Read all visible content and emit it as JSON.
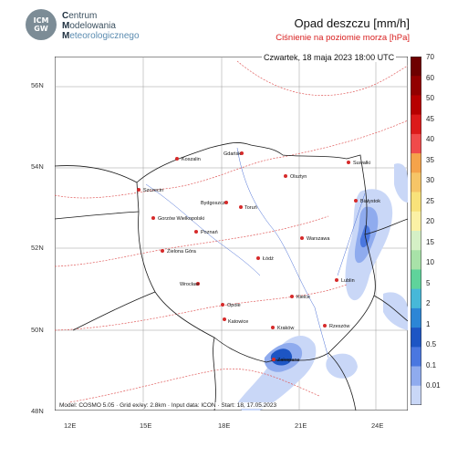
{
  "logo": {
    "mark": "ICM GW",
    "lines": [
      "Centrum",
      "Modelowania",
      "Meteorologicznego"
    ]
  },
  "title": "Opad deszczu [mm/h]",
  "subtitle": "Ciśnienie na poziomie morza [hPa]",
  "date_line": "Czwartek, 18 maja 2023 18:00 UTC",
  "footer": "Model: COSMO 5.05 · Grid ex/ey: 2.8km · Input data: ICON · Start: 18, 17.05.2023",
  "lat_labels": [
    "56N",
    "54N",
    "52N",
    "50N",
    "48N"
  ],
  "lon_labels": [
    "12E",
    "15E",
    "18E",
    "21E",
    "24E"
  ],
  "colorbar": {
    "levels": [
      "70",
      "60",
      "50",
      "45",
      "40",
      "35",
      "30",
      "25",
      "20",
      "15",
      "10",
      "5",
      "2",
      "1",
      "0.5",
      "0.1",
      "0.01"
    ],
    "colors": [
      "#6e0000",
      "#920000",
      "#b70000",
      "#dc1a1a",
      "#f04b4b",
      "#f5a34a",
      "#f6c567",
      "#f8e27a",
      "#fbf1a5",
      "#d5f0c6",
      "#a8e2a8",
      "#5fd39b",
      "#47b8d8",
      "#2c86d6",
      "#1d55c4",
      "#4a77e0",
      "#8fabee",
      "#c9d7f7"
    ]
  },
  "cities": [
    {
      "name": "Gdańsk"
    },
    {
      "name": "Koszalin"
    },
    {
      "name": "Olsztyn"
    },
    {
      "name": "Suwałki"
    },
    {
      "name": "Szczecin"
    },
    {
      "name": "Białystok"
    },
    {
      "name": "Bydgoszcz"
    },
    {
      "name": "Toruń"
    },
    {
      "name": "Gorzów Wielkopolski"
    },
    {
      "name": "Poznań"
    },
    {
      "name": "Warszawa"
    },
    {
      "name": "Zielona Góra"
    },
    {
      "name": "Łódź"
    },
    {
      "name": "Lublin"
    },
    {
      "name": "Wrocław"
    },
    {
      "name": "Opole"
    },
    {
      "name": "Kielce"
    },
    {
      "name": "Katowice"
    },
    {
      "name": "Kraków"
    },
    {
      "name": "Rzeszów"
    },
    {
      "name": "Zakopane"
    }
  ]
}
